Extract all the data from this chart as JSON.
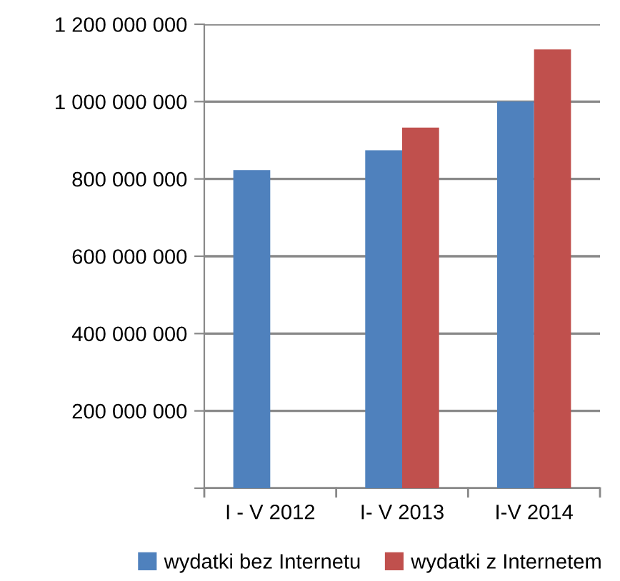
{
  "chart_data": {
    "type": "bar",
    "categories": [
      "I - V 2012",
      "I- V 2013",
      "I-V 2014"
    ],
    "series": [
      {
        "name": "wydatki bez Internetu",
        "color": "#4f81bd",
        "values": [
          823000000,
          874000000,
          1000000000
        ]
      },
      {
        "name": "wydatki z Internetem",
        "color": "#c0504d",
        "values": [
          null,
          933000000,
          1135000000
        ]
      }
    ],
    "ylim": [
      0,
      1200000000
    ],
    "yticks": [
      {
        "value": 0,
        "label": null
      },
      {
        "value": 200000000,
        "label": "200 000 000"
      },
      {
        "value": 400000000,
        "label": "400 000 000"
      },
      {
        "value": 600000000,
        "label": "600 000 000"
      },
      {
        "value": 800000000,
        "label": "800 000 000"
      },
      {
        "value": 1000000000,
        "label": "1 000 000 000"
      },
      {
        "value": 1200000000,
        "label": "1 200 000 000"
      }
    ],
    "grid": "y",
    "legend": "bottom"
  }
}
